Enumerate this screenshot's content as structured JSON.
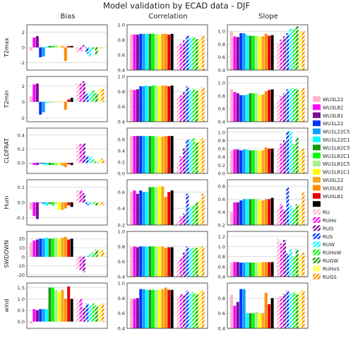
{
  "title": "Model validation by ECAD data - DJF",
  "columns": [
    "Bias",
    "Correlation",
    "Slope"
  ],
  "models": [
    {
      "name": "WU3L22",
      "color": "#f9b7c5",
      "hatch": false
    },
    {
      "name": "WU3L82",
      "color": "#ff00ff",
      "hatch": false
    },
    {
      "name": "WU3L81",
      "color": "#7a0f96",
      "hatch": false
    },
    {
      "name": "WU1L22",
      "color": "#0033ff",
      "hatch": false
    },
    {
      "name": "WU1L22C5",
      "color": "#0aa0ff",
      "hatch": false
    },
    {
      "name": "WU1L22C1",
      "color": "#00ffff",
      "hatch": false
    },
    {
      "name": "WU1L82C5",
      "color": "#149a14",
      "hatch": false
    },
    {
      "name": "WU1L82C1",
      "color": "#00ff00",
      "hatch": false
    },
    {
      "name": "WU1L81C5",
      "color": "#a8f08c",
      "hatch": false
    },
    {
      "name": "WU1L81C1",
      "color": "#ffff00",
      "hatch": false
    },
    {
      "name": "WU0L22",
      "color": "#f5a623",
      "hatch": false
    },
    {
      "name": "WU0L82",
      "color": "#ff8c00",
      "hatch": false
    },
    {
      "name": "WU0L81",
      "color": "#e60000",
      "hatch": false
    },
    {
      "name": "",
      "color": "#000000",
      "hatch": false
    },
    {
      "name": "RU",
      "color": "#f9b7c5",
      "hatch": true
    },
    {
      "name": "RUHo",
      "color": "#ff00ff",
      "hatch": true
    },
    {
      "name": "RUG",
      "color": "#7a0f96",
      "hatch": true
    },
    {
      "name": "RUS",
      "color": "#0033ff",
      "hatch": true
    },
    {
      "name": "RUW",
      "color": "#00ffff",
      "hatch": true
    },
    {
      "name": "RUHoW",
      "color": "#00ff00",
      "hatch": true
    },
    {
      "name": "RUGW",
      "color": "#149a14",
      "hatch": true
    },
    {
      "name": "RUHoS",
      "color": "#ffff00",
      "hatch": true
    },
    {
      "name": "RUGS",
      "color": "#ff8c00",
      "hatch": true
    }
  ],
  "chart_data": [
    {
      "type": "bar",
      "row_label": "T2max",
      "column": "Bias",
      "ylim": [
        -3,
        3
      ],
      "yticks": [
        "-2",
        "0",
        "2"
      ],
      "values": [
        -0.4,
        1.3,
        1.5,
        -1.3,
        -1.2,
        0.1,
        0.2,
        0.2,
        0.3,
        0.1,
        0.2,
        -1.8,
        0.2,
        0.2,
        -0.6,
        -0.5,
        0.3,
        -0.8,
        -1.2,
        -0.3,
        -1.0,
        -0.2,
        -0.1
      ]
    },
    {
      "type": "bar",
      "row_label": "T2max",
      "column": "Correlation",
      "ylim": [
        0.4,
        1.0
      ],
      "yticks": [
        "0.4",
        "0.6",
        "0.8",
        "1.0"
      ],
      "values": [
        0.87,
        0.87,
        0.87,
        0.88,
        0.88,
        0.88,
        0.88,
        0.88,
        0.88,
        0.87,
        0.88,
        0.88,
        0.87,
        0.88,
        0.72,
        0.75,
        0.79,
        0.86,
        0.82,
        0.84,
        0.81,
        0.82,
        0.86
      ]
    },
    {
      "type": "bar",
      "row_label": "T2max",
      "column": "Slope",
      "ylim": [
        0.4,
        1.1
      ],
      "yticks": [
        "0.4",
        "0.6",
        "0.8",
        "1.0"
      ],
      "values": [
        1.0,
        0.92,
        0.91,
        0.97,
        0.97,
        0.94,
        0.93,
        0.93,
        0.93,
        0.92,
        0.92,
        0.96,
        0.93,
        0.94,
        0.82,
        0.87,
        0.92,
        0.97,
        1.04,
        1.03,
        1.08,
        1.0,
        1.0
      ]
    },
    {
      "type": "bar",
      "row_label": "T2min",
      "column": "Bias",
      "ylim": [
        -2.5,
        3.2
      ],
      "yticks": [
        "-2",
        "0",
        "2"
      ],
      "values": [
        0.7,
        2.2,
        2.3,
        -1.6,
        -1.3,
        -0.1,
        0.0,
        0.0,
        0.0,
        0.1,
        0.0,
        -1.0,
        0.3,
        0.5,
        2.3,
        2.3,
        2.6,
        1.0,
        1.2,
        1.4,
        1.1,
        1.6,
        1.6
      ]
    },
    {
      "type": "bar",
      "row_label": "T2min",
      "column": "Correlation",
      "ylim": [
        0.4,
        1.0
      ],
      "yticks": [
        "0.4",
        "0.6",
        "0.8",
        "1.0"
      ],
      "values": [
        0.83,
        0.82,
        0.83,
        0.87,
        0.87,
        0.88,
        0.87,
        0.88,
        0.88,
        0.87,
        0.88,
        0.88,
        0.87,
        0.88,
        0.72,
        0.75,
        0.79,
        0.87,
        0.82,
        0.84,
        0.81,
        0.82,
        0.86
      ]
    },
    {
      "type": "bar",
      "row_label": "T2min",
      "column": "Slope",
      "ylim": [
        0.4,
        1.1
      ],
      "yticks": [
        "0.4",
        "0.6",
        "0.8",
        "1.0"
      ],
      "values": [
        0.9,
        0.86,
        0.84,
        0.81,
        0.81,
        0.82,
        0.84,
        0.84,
        0.84,
        0.81,
        0.82,
        0.87,
        0.89,
        0.9,
        0.74,
        0.79,
        0.84,
        0.9,
        0.91,
        0.92,
        0.91,
        0.88,
        0.92
      ]
    },
    {
      "type": "bar",
      "row_label": "CLDFRAT",
      "column": "Bias",
      "ylim": [
        -0.15,
        0.5
      ],
      "yticks": [
        "0.0",
        "0.2",
        "0.4"
      ],
      "values": [
        -0.02,
        -0.03,
        -0.03,
        -0.01,
        -0.02,
        -0.03,
        -0.03,
        -0.03,
        -0.04,
        -0.03,
        -0.04,
        -0.06,
        -0.02,
        -0.03,
        0.27,
        0.27,
        0.28,
        0.09,
        0.1,
        0.05,
        0.02,
        0.06,
        0.06
      ]
    },
    {
      "type": "bar",
      "row_label": "CLDFRAT",
      "column": "Correlation",
      "ylim": [
        0.0,
        0.8
      ],
      "yticks": [
        "0.0",
        "0.2",
        "0.4",
        "0.6"
      ],
      "values": [
        0.66,
        0.66,
        0.66,
        0.66,
        0.66,
        0.66,
        0.66,
        0.66,
        0.66,
        0.65,
        0.65,
        0.66,
        0.66,
        0.66,
        0.18,
        0.3,
        0.44,
        0.6,
        0.6,
        0.62,
        0.55,
        0.6,
        0.62
      ]
    },
    {
      "type": "bar",
      "row_label": "CLDFRAT",
      "column": "Slope",
      "ylim": [
        0.0,
        1.1
      ],
      "yticks": [
        "0.0",
        "0.2",
        "0.4",
        "0.6",
        "0.8",
        "1.0"
      ],
      "values": [
        0.56,
        0.58,
        0.58,
        0.56,
        0.58,
        0.58,
        0.56,
        0.56,
        0.56,
        0.56,
        0.56,
        0.63,
        0.6,
        0.6,
        0.6,
        0.72,
        0.8,
        1.02,
        1.03,
        0.72,
        0.87,
        0.56,
        0.6
      ]
    },
    {
      "type": "bar",
      "row_label": "Hum",
      "column": "Bias",
      "ylim": [
        -0.15,
        0.15
      ],
      "yticks": [
        "-0.1",
        "0.0",
        "0.1"
      ],
      "values": [
        -0.05,
        -0.09,
        -0.11,
        0.0,
        -0.01,
        -0.02,
        -0.01,
        -0.02,
        -0.01,
        -0.05,
        -0.05,
        -0.04,
        -0.02,
        -0.03,
        0.08,
        0.08,
        0.06,
        -0.02,
        -0.02,
        -0.01,
        -0.02,
        -0.02,
        -0.02
      ]
    },
    {
      "type": "bar",
      "row_label": "Hum",
      "column": "Correlation",
      "ylim": [
        0.2,
        0.75
      ],
      "yticks": [
        "0.2",
        "0.4",
        "0.6"
      ],
      "values": [
        0.6,
        0.62,
        0.58,
        0.62,
        0.6,
        0.6,
        0.66,
        0.66,
        0.66,
        0.67,
        0.67,
        0.54,
        0.6,
        0.62,
        0.25,
        0.3,
        0.34,
        0.58,
        0.42,
        0.44,
        0.48,
        0.5,
        0.58
      ]
    },
    {
      "type": "bar",
      "row_label": "Hum",
      "column": "Slope",
      "ylim": [
        0.2,
        0.9
      ],
      "yticks": [
        "0.2",
        "0.4",
        "0.6",
        "0.8"
      ],
      "values": [
        0.4,
        0.55,
        0.55,
        0.58,
        0.6,
        0.6,
        0.6,
        0.6,
        0.6,
        0.58,
        0.58,
        0.6,
        0.6,
        0.62,
        0.46,
        0.52,
        0.44,
        0.78,
        0.5,
        0.44,
        0.52,
        0.52,
        0.7
      ]
    },
    {
      "type": "bar",
      "row_label": "SWDOWN",
      "column": "Bias",
      "ylim": [
        -22,
        28
      ],
      "yticks": [
        "-20",
        "-10",
        "0",
        "10",
        "20"
      ],
      "values": [
        16,
        18,
        19,
        20,
        20,
        21,
        20,
        20,
        21,
        20,
        21,
        22,
        19,
        20,
        -13,
        -15,
        -17,
        1,
        3,
        5,
        8,
        8,
        7
      ]
    },
    {
      "type": "bar",
      "row_label": "SWDOWN",
      "column": "Correlation",
      "ylim": [
        0.4,
        1.0
      ],
      "yticks": [
        "0.4",
        "0.6",
        "0.8",
        "1.0"
      ],
      "values": [
        0.79,
        0.8,
        0.79,
        0.8,
        0.8,
        0.8,
        0.8,
        0.8,
        0.8,
        0.8,
        0.8,
        0.78,
        0.79,
        0.79,
        0.6,
        0.65,
        0.72,
        0.8,
        0.77,
        0.78,
        0.78,
        0.8,
        0.8
      ]
    },
    {
      "type": "bar",
      "row_label": "SWDOWN",
      "column": "Slope",
      "ylim": [
        0.4,
        1.3
      ],
      "yticks": [
        "0.4",
        "0.6",
        "0.8",
        "1.0",
        "1.2"
      ],
      "values": [
        0.69,
        0.69,
        0.69,
        0.68,
        0.68,
        0.69,
        0.68,
        0.68,
        0.68,
        0.68,
        0.69,
        0.69,
        0.69,
        0.69,
        1.15,
        1.06,
        1.13,
        0.86,
        0.94,
        0.8,
        0.95,
        0.82,
        0.88
      ]
    },
    {
      "type": "bar",
      "row_label": "wind",
      "column": "Bias",
      "ylim": [
        -0.3,
        1.7
      ],
      "yticks": [
        "0.0",
        "0.5",
        "1.0",
        "1.5"
      ],
      "values": [
        -0.1,
        0.55,
        0.5,
        0.55,
        0.55,
        0.55,
        1.5,
        1.5,
        1.4,
        1.3,
        1.4,
        1.0,
        1.55,
        1.0,
        0.95,
        1.0,
        0.6,
        0.8,
        0.7,
        0.8,
        0.7,
        0.75,
        0.8
      ]
    },
    {
      "type": "bar",
      "row_label": "wind",
      "column": "Correlation",
      "ylim": [
        0.4,
        1.0
      ],
      "yticks": [
        "0.4",
        "0.6",
        "0.8",
        "1.0"
      ],
      "values": [
        0.79,
        0.79,
        0.8,
        0.92,
        0.92,
        0.91,
        0.91,
        0.91,
        0.91,
        0.91,
        0.92,
        0.94,
        0.91,
        0.91,
        0.82,
        0.86,
        0.84,
        0.9,
        0.86,
        0.88,
        0.86,
        0.9,
        0.9
      ]
    },
    {
      "type": "bar",
      "row_label": "wind",
      "column": "Slope",
      "ylim": [
        0.4,
        1.0
      ],
      "yticks": [
        "0.4",
        "0.6",
        "0.8"
      ],
      "values": [
        0.84,
        0.7,
        0.75,
        0.92,
        0.92,
        0.6,
        0.6,
        0.6,
        0.62,
        0.6,
        0.6,
        0.87,
        0.72,
        0.8,
        0.82,
        0.82,
        0.86,
        0.9,
        0.86,
        0.88,
        0.85,
        0.9,
        0.9
      ]
    }
  ]
}
